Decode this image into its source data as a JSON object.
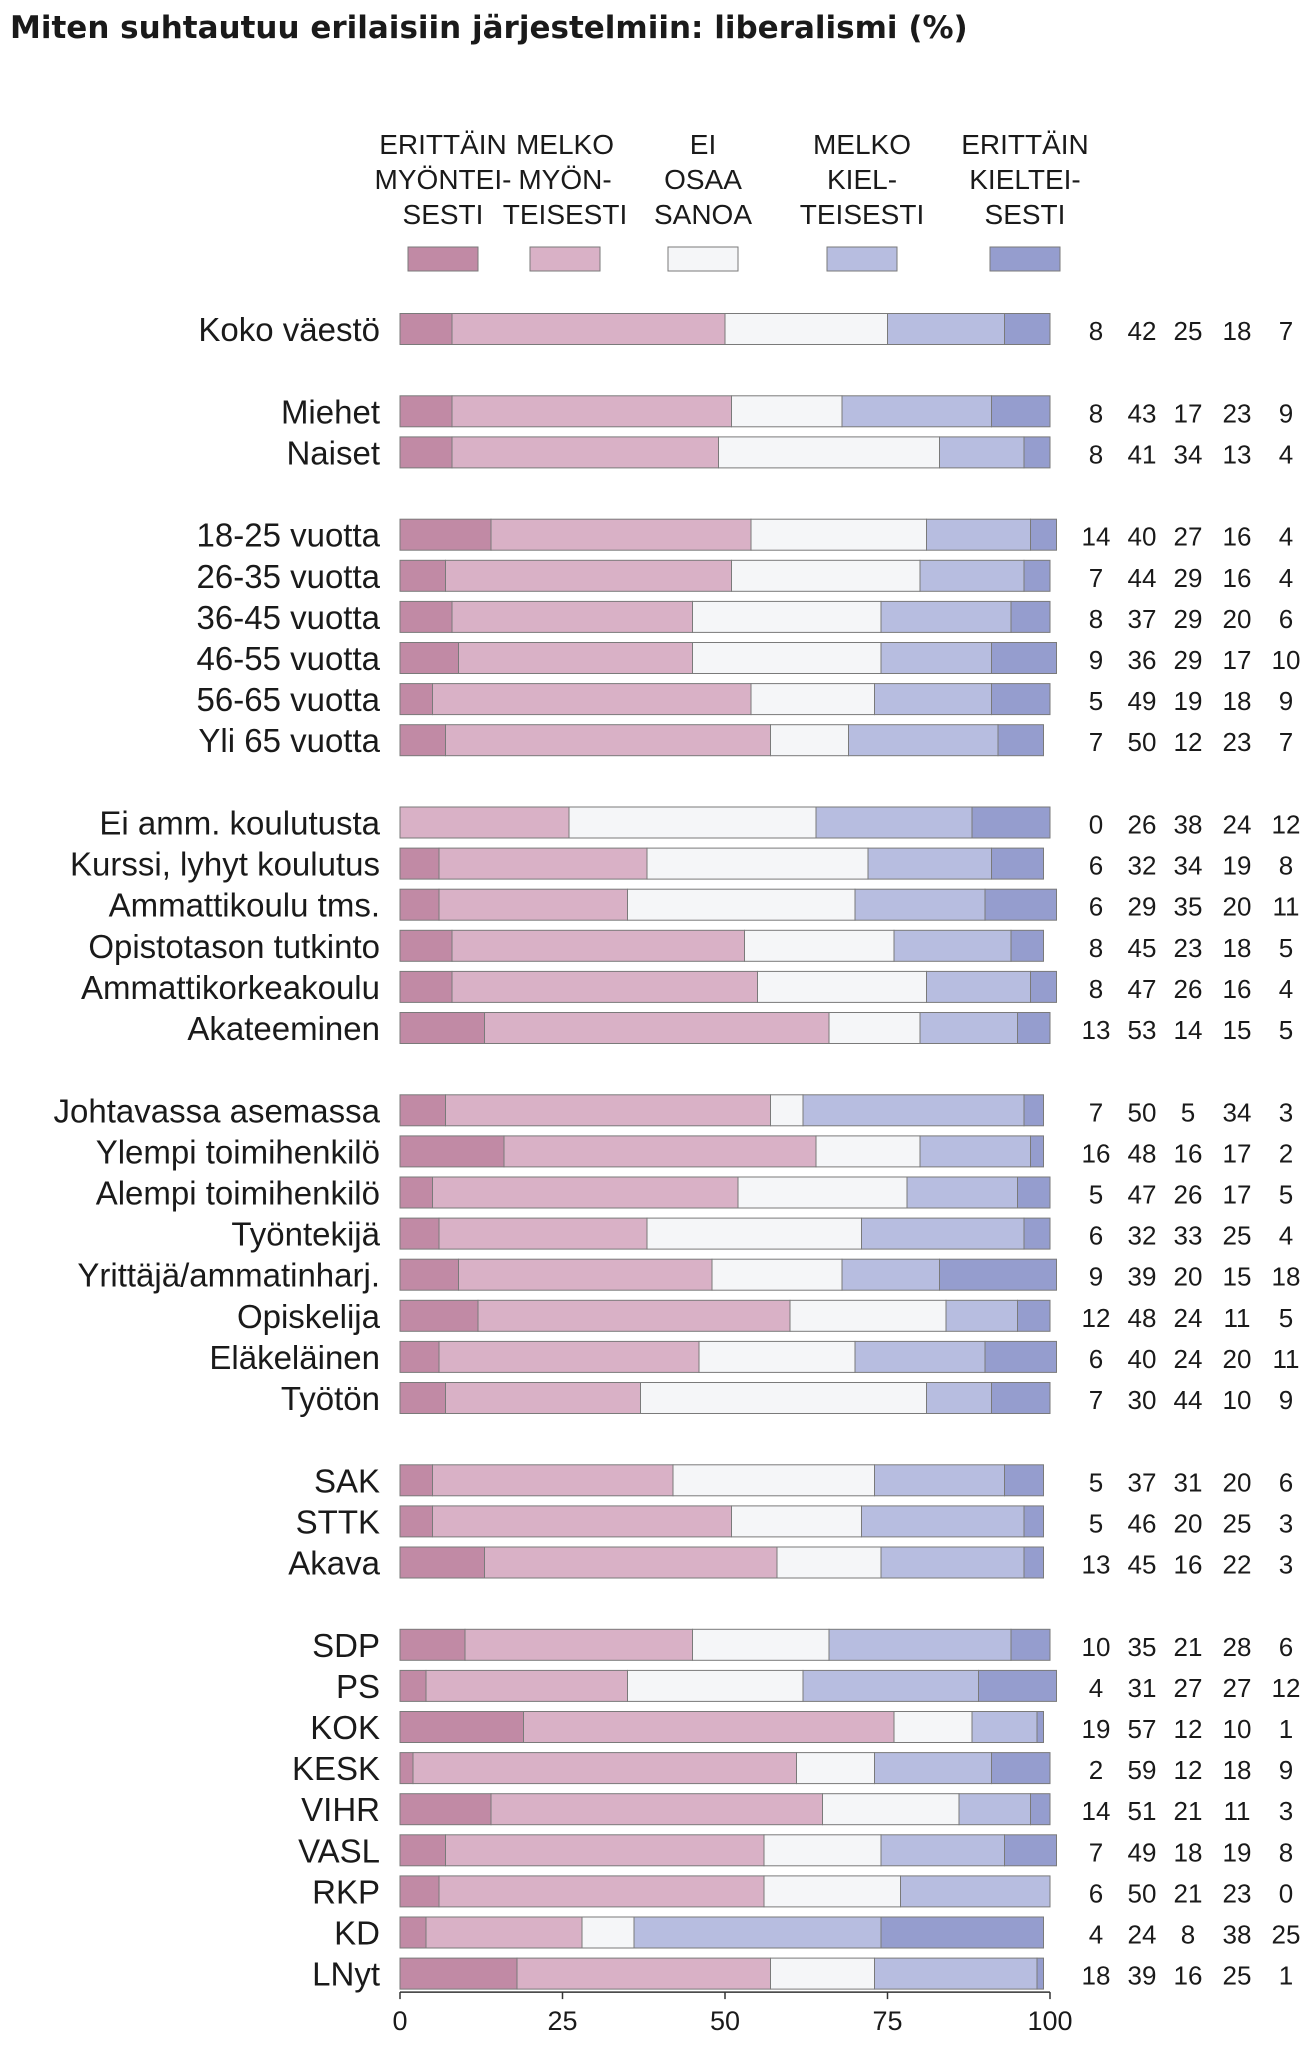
{
  "chart_data": {
    "type": "bar",
    "stacked": true,
    "orientation": "horizontal",
    "title": "Miten suhtautuu erilaisiin järjestelmiin: liberalismi (%)",
    "xlim": [
      0,
      100
    ],
    "xticks": [
      0,
      25,
      50,
      75,
      100
    ],
    "legend_position": "top",
    "series": [
      {
        "name": "ERITTÄIN MYÖNTEI- SESTI",
        "legend_lines": [
          "ERITTÄIN",
          "MYÖNTEI-",
          "SESTI"
        ],
        "color": "#c18aa5"
      },
      {
        "name": "MELKO MYÖN- TEISESTI",
        "legend_lines": [
          "MELKO",
          "MYÖN-",
          "TEISESTI"
        ],
        "color": "#d9b1c6"
      },
      {
        "name": "EI OSAA SANOA",
        "legend_lines": [
          "EI",
          "OSAA",
          "SANOA"
        ],
        "color": "#f5f6f8"
      },
      {
        "name": "MELKO KIEL- TEISESTI",
        "legend_lines": [
          "MELKO",
          "KIEL-",
          "TEISESTI"
        ],
        "color": "#b7bde0"
      },
      {
        "name": "ERITTÄIN KIELTEI- SESTI",
        "legend_lines": [
          "ERITTÄIN",
          "KIELTEI-",
          "SESTI"
        ],
        "color": "#959dce"
      }
    ],
    "groups": [
      [
        {
          "label": "Koko väestö",
          "values": [
            8,
            42,
            25,
            18,
            7
          ]
        }
      ],
      [
        {
          "label": "Miehet",
          "values": [
            8,
            43,
            17,
            23,
            9
          ]
        },
        {
          "label": "Naiset",
          "values": [
            8,
            41,
            34,
            13,
            4
          ]
        }
      ],
      [
        {
          "label": "18-25 vuotta",
          "values": [
            14,
            40,
            27,
            16,
            4
          ]
        },
        {
          "label": "26-35 vuotta",
          "values": [
            7,
            44,
            29,
            16,
            4
          ]
        },
        {
          "label": "36-45 vuotta",
          "values": [
            8,
            37,
            29,
            20,
            6
          ]
        },
        {
          "label": "46-55 vuotta",
          "values": [
            9,
            36,
            29,
            17,
            10
          ]
        },
        {
          "label": "56-65 vuotta",
          "values": [
            5,
            49,
            19,
            18,
            9
          ]
        },
        {
          "label": "Yli 65 vuotta",
          "values": [
            7,
            50,
            12,
            23,
            7
          ]
        }
      ],
      [
        {
          "label": "Ei amm. koulutusta",
          "values": [
            0,
            26,
            38,
            24,
            12
          ]
        },
        {
          "label": "Kurssi, lyhyt koulutus",
          "values": [
            6,
            32,
            34,
            19,
            8
          ]
        },
        {
          "label": "Ammattikoulu tms.",
          "values": [
            6,
            29,
            35,
            20,
            11
          ]
        },
        {
          "label": "Opistotason tutkinto",
          "values": [
            8,
            45,
            23,
            18,
            5
          ]
        },
        {
          "label": "Ammattikorkeakoulu",
          "values": [
            8,
            47,
            26,
            16,
            4
          ]
        },
        {
          "label": "Akateeminen",
          "values": [
            13,
            53,
            14,
            15,
            5
          ]
        }
      ],
      [
        {
          "label": "Johtavassa asemassa",
          "values": [
            7,
            50,
            5,
            34,
            3
          ]
        },
        {
          "label": "Ylempi toimihenkilö",
          "values": [
            16,
            48,
            16,
            17,
            2
          ]
        },
        {
          "label": "Alempi toimihenkilö",
          "values": [
            5,
            47,
            26,
            17,
            5
          ]
        },
        {
          "label": "Työntekijä",
          "values": [
            6,
            32,
            33,
            25,
            4
          ]
        },
        {
          "label": "Yrittäjä/ammatinharj.",
          "values": [
            9,
            39,
            20,
            15,
            18
          ]
        },
        {
          "label": "Opiskelija",
          "values": [
            12,
            48,
            24,
            11,
            5
          ]
        },
        {
          "label": "Eläkeläinen",
          "values": [
            6,
            40,
            24,
            20,
            11
          ]
        },
        {
          "label": "Työtön",
          "values": [
            7,
            30,
            44,
            10,
            9
          ]
        }
      ],
      [
        {
          "label": "SAK",
          "values": [
            5,
            37,
            31,
            20,
            6
          ]
        },
        {
          "label": "STTK",
          "values": [
            5,
            46,
            20,
            25,
            3
          ]
        },
        {
          "label": "Akava",
          "values": [
            13,
            45,
            16,
            22,
            3
          ]
        }
      ],
      [
        {
          "label": "SDP",
          "values": [
            10,
            35,
            21,
            28,
            6
          ]
        },
        {
          "label": "PS",
          "values": [
            4,
            31,
            27,
            27,
            12
          ]
        },
        {
          "label": "KOK",
          "values": [
            19,
            57,
            12,
            10,
            1
          ]
        },
        {
          "label": "KESK",
          "values": [
            2,
            59,
            12,
            18,
            9
          ]
        },
        {
          "label": "VIHR",
          "values": [
            14,
            51,
            21,
            11,
            3
          ]
        },
        {
          "label": "VASL",
          "values": [
            7,
            49,
            18,
            19,
            8
          ]
        },
        {
          "label": "RKP",
          "values": [
            6,
            50,
            21,
            23,
            0
          ]
        },
        {
          "label": "KD",
          "values": [
            4,
            24,
            8,
            38,
            25
          ]
        },
        {
          "label": "LNyt",
          "values": [
            18,
            39,
            16,
            25,
            1
          ]
        }
      ]
    ]
  }
}
